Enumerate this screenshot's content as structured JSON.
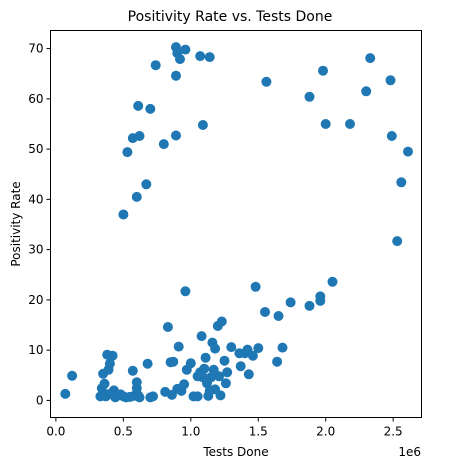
{
  "chart_data": {
    "type": "scatter",
    "title": "Positivity Rate vs. Tests Done",
    "xlabel": "Tests Done",
    "ylabel": "Positivity Rate",
    "x_offset_label": "1e6",
    "xlim": [
      -0.04,
      2.71
    ],
    "ylim": [
      -3.4,
      73.6
    ],
    "xticks": [
      0.0,
      0.5,
      1.0,
      1.5,
      2.0,
      2.5
    ],
    "xtick_labels": [
      "0.0",
      "0.5",
      "1.0",
      "1.5",
      "2.0",
      "2.5"
    ],
    "yticks": [
      0,
      10,
      20,
      30,
      40,
      50,
      60,
      70
    ],
    "ytick_labels": [
      "0",
      "10",
      "20",
      "30",
      "40",
      "50",
      "60",
      "70"
    ],
    "grid": false,
    "marker_color": "#1f77b4",
    "points": [
      [
        0.07,
        1.3
      ],
      [
        0.12,
        4.9
      ],
      [
        0.33,
        0.8
      ],
      [
        0.34,
        2.4
      ],
      [
        0.35,
        1.5
      ],
      [
        0.35,
        5.3
      ],
      [
        0.36,
        3.3
      ],
      [
        0.37,
        0.8
      ],
      [
        0.38,
        9.1
      ],
      [
        0.39,
        6.1
      ],
      [
        0.4,
        7.3
      ],
      [
        0.4,
        1.3
      ],
      [
        0.42,
        8.9
      ],
      [
        0.43,
        2.0
      ],
      [
        0.44,
        0.6
      ],
      [
        0.46,
        1.0
      ],
      [
        0.48,
        1.2
      ],
      [
        0.5,
        0.8
      ],
      [
        0.52,
        0.6
      ],
      [
        0.55,
        0.7
      ],
      [
        0.57,
        5.9
      ],
      [
        0.58,
        0.9
      ],
      [
        0.6,
        3.6
      ],
      [
        0.6,
        2.4
      ],
      [
        0.61,
        1.0
      ],
      [
        0.62,
        0.6
      ],
      [
        0.68,
        7.3
      ],
      [
        0.7,
        0.6
      ],
      [
        0.72,
        0.8
      ],
      [
        0.81,
        1.7
      ],
      [
        0.83,
        14.6
      ],
      [
        0.85,
        7.6
      ],
      [
        0.86,
        1.1
      ],
      [
        0.87,
        7.7
      ],
      [
        0.9,
        2.3
      ],
      [
        0.91,
        10.7
      ],
      [
        0.93,
        1.9
      ],
      [
        0.95,
        3.2
      ],
      [
        0.96,
        21.7
      ],
      [
        0.97,
        6.1
      ],
      [
        1.0,
        7.4
      ],
      [
        1.02,
        0.8
      ],
      [
        1.05,
        0.8
      ],
      [
        1.05,
        4.8
      ],
      [
        1.07,
        5.6
      ],
      [
        1.08,
        12.8
      ],
      [
        1.09,
        4.6
      ],
      [
        1.1,
        6.3
      ],
      [
        1.11,
        8.5
      ],
      [
        1.12,
        3.4
      ],
      [
        1.13,
        0.9
      ],
      [
        1.14,
        1.9
      ],
      [
        1.15,
        4.6
      ],
      [
        1.16,
        11.5
      ],
      [
        1.17,
        6.1
      ],
      [
        1.18,
        2.2
      ],
      [
        1.18,
        10.3
      ],
      [
        1.2,
        14.8
      ],
      [
        1.21,
        4.8
      ],
      [
        1.22,
        1.0
      ],
      [
        1.23,
        15.7
      ],
      [
        1.25,
        7.9
      ],
      [
        1.26,
        3.4
      ],
      [
        1.27,
        5.6
      ],
      [
        1.3,
        10.6
      ],
      [
        1.36,
        9.4
      ],
      [
        1.37,
        6.8
      ],
      [
        1.4,
        9.4
      ],
      [
        1.42,
        10.1
      ],
      [
        1.43,
        5.2
      ],
      [
        1.46,
        8.9
      ],
      [
        1.48,
        22.6
      ],
      [
        1.5,
        10.4
      ],
      [
        1.55,
        17.6
      ],
      [
        1.64,
        7.7
      ],
      [
        1.65,
        16.8
      ],
      [
        1.68,
        10.5
      ],
      [
        1.74,
        19.5
      ],
      [
        1.88,
        18.8
      ],
      [
        1.96,
        19.8
      ],
      [
        1.96,
        20.7
      ],
      [
        2.05,
        23.6
      ],
      [
        0.5,
        37.0
      ],
      [
        0.53,
        49.4
      ],
      [
        0.57,
        52.2
      ],
      [
        0.6,
        40.5
      ],
      [
        0.61,
        58.6
      ],
      [
        0.62,
        52.6
      ],
      [
        0.67,
        43.0
      ],
      [
        0.7,
        58.0
      ],
      [
        0.74,
        66.7
      ],
      [
        0.8,
        51.0
      ],
      [
        0.89,
        70.3
      ],
      [
        0.89,
        64.6
      ],
      [
        0.89,
        52.7
      ],
      [
        0.9,
        69.1
      ],
      [
        0.92,
        67.9
      ],
      [
        0.96,
        69.8
      ],
      [
        1.07,
        68.5
      ],
      [
        1.09,
        54.8
      ],
      [
        1.14,
        68.3
      ],
      [
        1.56,
        63.4
      ],
      [
        1.88,
        60.4
      ],
      [
        1.98,
        65.6
      ],
      [
        2.0,
        55.0
      ],
      [
        2.18,
        55.0
      ],
      [
        2.3,
        61.5
      ],
      [
        2.33,
        68.1
      ],
      [
        2.48,
        63.7
      ],
      [
        2.49,
        52.6
      ],
      [
        2.53,
        31.7
      ],
      [
        2.56,
        43.4
      ],
      [
        2.61,
        49.5
      ]
    ]
  }
}
